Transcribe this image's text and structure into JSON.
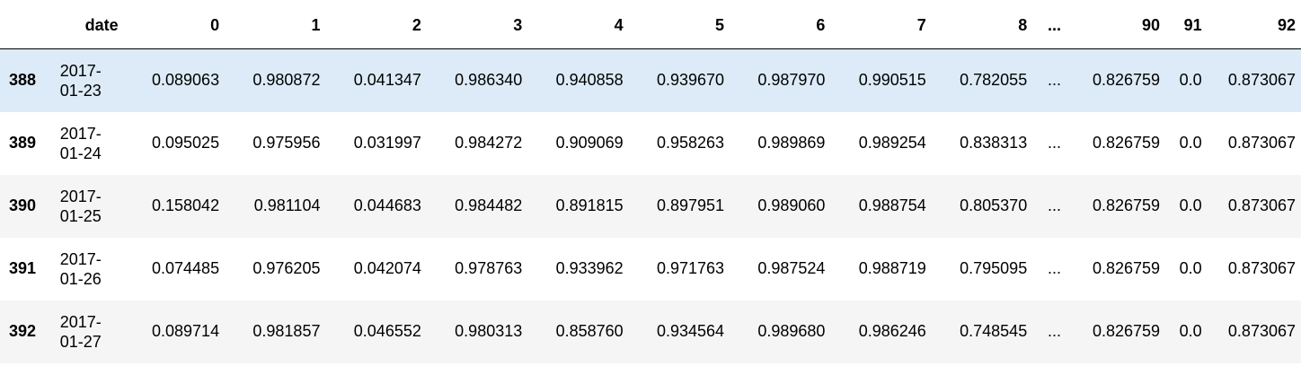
{
  "header": {
    "columns": [
      "",
      "date",
      "0",
      "1",
      "2",
      "3",
      "4",
      "5",
      "6",
      "7",
      "8",
      "...",
      "90",
      "91",
      "92"
    ]
  },
  "rows": [
    {
      "index": "388",
      "date_year": "2017-",
      "date_md": "01-23",
      "values": [
        "0.089063",
        "0.980872",
        "0.041347",
        "0.986340",
        "0.940858",
        "0.939670",
        "0.987970",
        "0.990515",
        "0.782055",
        "...",
        "0.826759",
        "0.0",
        "0.873067"
      ]
    },
    {
      "index": "389",
      "date_year": "2017-",
      "date_md": "01-24",
      "values": [
        "0.095025",
        "0.975956",
        "0.031997",
        "0.984272",
        "0.909069",
        "0.958263",
        "0.989869",
        "0.989254",
        "0.838313",
        "...",
        "0.826759",
        "0.0",
        "0.873067"
      ]
    },
    {
      "index": "390",
      "date_year": "2017-",
      "date_md": "01-25",
      "values": [
        "0.158042",
        "0.981104",
        "0.044683",
        "0.984482",
        "0.891815",
        "0.897951",
        "0.989060",
        "0.988754",
        "0.805370",
        "...",
        "0.826759",
        "0.0",
        "0.873067"
      ]
    },
    {
      "index": "391",
      "date_year": "2017-",
      "date_md": "01-26",
      "values": [
        "0.074485",
        "0.976205",
        "0.042074",
        "0.978763",
        "0.933962",
        "0.971763",
        "0.987524",
        "0.988719",
        "0.795095",
        "...",
        "0.826759",
        "0.0",
        "0.873067"
      ]
    },
    {
      "index": "392",
      "date_year": "2017-",
      "date_md": "01-27",
      "values": [
        "0.089714",
        "0.981857",
        "0.046552",
        "0.980313",
        "0.858760",
        "0.934564",
        "0.989680",
        "0.986246",
        "0.748545",
        "...",
        "0.826759",
        "0.0",
        "0.873067"
      ]
    }
  ],
  "colors": {
    "selected_row": "#dcebf7",
    "striped_row": "#f5f5f5"
  }
}
